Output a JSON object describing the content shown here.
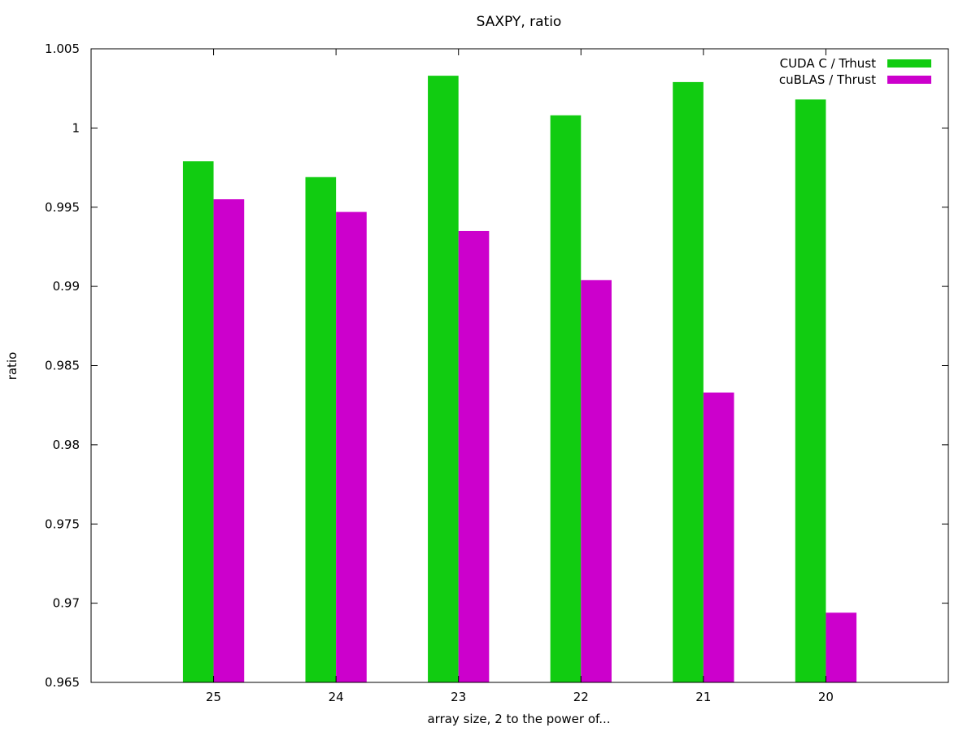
{
  "chart_data": {
    "type": "bar",
    "title": "SAXPY, ratio",
    "xlabel": "array size, 2 to the power of...",
    "ylabel": "ratio",
    "categories": [
      "25",
      "24",
      "23",
      "22",
      "21",
      "20"
    ],
    "ylim": [
      0.965,
      1.005
    ],
    "yticks": [
      "0.965",
      "0.97",
      "0.975",
      "0.98",
      "0.985",
      "0.99",
      "0.995",
      "1",
      "1.005"
    ],
    "grid": false,
    "legend_position": "top-right",
    "series": [
      {
        "name": "CUDA C / Trhust",
        "color": "#11cc11",
        "values": [
          0.9979,
          0.9969,
          1.0033,
          1.0008,
          1.0029,
          1.0018
        ]
      },
      {
        "name": "cuBLAS / Thrust",
        "color": "#cc00cc",
        "values": [
          0.9955,
          0.9947,
          0.9935,
          0.9904,
          0.9833,
          0.9694
        ]
      }
    ]
  }
}
